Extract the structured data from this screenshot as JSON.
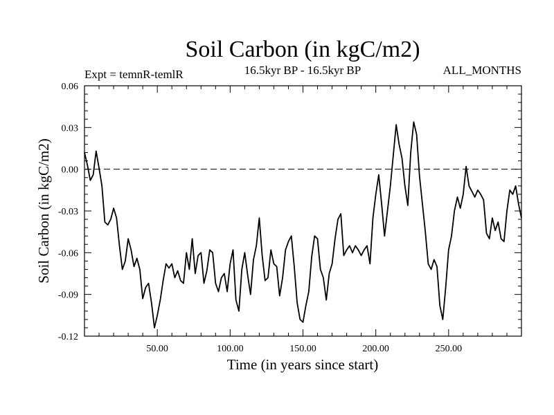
{
  "chart_data": {
    "type": "line",
    "title": "Soil Carbon (in kgC/m2)",
    "subtitle_left": "Expt = temnR-temlR",
    "subtitle_center": "16.5kyr BP - 16.5kyr BP",
    "subtitle_right": "ALL_MONTHS",
    "xlabel": "Time (in years since start)",
    "ylabel": "Soil Carbon (in kgC/m2)",
    "xlim": [
      0,
      300
    ],
    "ylim": [
      -0.12,
      0.06
    ],
    "x_ticks": [
      50,
      100,
      150,
      200,
      250
    ],
    "x_tick_labels": [
      "50.00",
      "100.00",
      "150.00",
      "200.00",
      "250.00"
    ],
    "y_ticks": [
      -0.12,
      -0.09,
      -0.06,
      -0.03,
      0.0,
      0.03,
      0.06
    ],
    "y_tick_labels": [
      "-0.12",
      "-0.09",
      "-0.06",
      "-0.03",
      "0.00",
      "0.03",
      "0.06"
    ],
    "reference_line": 0.0,
    "series": [
      {
        "name": "Soil Carbon",
        "x": [
          0,
          2,
          4,
          6,
          8,
          10,
          12,
          14,
          16,
          18,
          20,
          22,
          24,
          26,
          28,
          30,
          32,
          34,
          36,
          38,
          40,
          42,
          44,
          46,
          48,
          50,
          52,
          54,
          56,
          58,
          60,
          62,
          64,
          66,
          68,
          70,
          72,
          74,
          76,
          78,
          80,
          82,
          84,
          86,
          88,
          90,
          92,
          94,
          96,
          98,
          100,
          102,
          104,
          106,
          108,
          110,
          112,
          114,
          116,
          118,
          120,
          122,
          124,
          126,
          128,
          130,
          132,
          134,
          136,
          138,
          140,
          142,
          144,
          146,
          148,
          150,
          152,
          154,
          156,
          158,
          160,
          162,
          164,
          166,
          168,
          170,
          172,
          174,
          176,
          178,
          180,
          182,
          184,
          186,
          188,
          190,
          192,
          194,
          196,
          198,
          200,
          202,
          204,
          206,
          208,
          210,
          212,
          214,
          216,
          218,
          220,
          222,
          224,
          226,
          228,
          230,
          232,
          234,
          236,
          238,
          240,
          242,
          244,
          246,
          248,
          250,
          252,
          254,
          256,
          258,
          260,
          262,
          264,
          266,
          268,
          270,
          272,
          274,
          276,
          278,
          280,
          282,
          284,
          286,
          288,
          290,
          292,
          294,
          296,
          298,
          300
        ],
        "y": [
          0.012,
          0.003,
          -0.008,
          -0.004,
          0.013,
          0.001,
          -0.012,
          -0.038,
          -0.04,
          -0.036,
          -0.028,
          -0.035,
          -0.055,
          -0.072,
          -0.066,
          -0.05,
          -0.058,
          -0.07,
          -0.064,
          -0.072,
          -0.093,
          -0.085,
          -0.082,
          -0.096,
          -0.114,
          -0.105,
          -0.094,
          -0.08,
          -0.068,
          -0.071,
          -0.068,
          -0.078,
          -0.073,
          -0.08,
          -0.082,
          -0.06,
          -0.072,
          -0.05,
          -0.075,
          -0.062,
          -0.06,
          -0.082,
          -0.073,
          -0.058,
          -0.06,
          -0.082,
          -0.088,
          -0.078,
          -0.075,
          -0.088,
          -0.068,
          -0.058,
          -0.094,
          -0.102,
          -0.072,
          -0.06,
          -0.076,
          -0.09,
          -0.065,
          -0.055,
          -0.035,
          -0.062,
          -0.08,
          -0.078,
          -0.058,
          -0.068,
          -0.07,
          -0.091,
          -0.078,
          -0.058,
          -0.052,
          -0.048,
          -0.07,
          -0.096,
          -0.108,
          -0.11,
          -0.098,
          -0.088,
          -0.063,
          -0.048,
          -0.05,
          -0.072,
          -0.078,
          -0.094,
          -0.075,
          -0.068,
          -0.05,
          -0.036,
          -0.032,
          -0.062,
          -0.058,
          -0.055,
          -0.06,
          -0.055,
          -0.058,
          -0.062,
          -0.058,
          -0.055,
          -0.068,
          -0.035,
          -0.018,
          -0.004,
          -0.025,
          -0.048,
          -0.03,
          -0.012,
          0.01,
          0.032,
          0.018,
          0.008,
          -0.012,
          -0.026,
          0.012,
          0.034,
          0.025,
          -0.005,
          -0.025,
          -0.045,
          -0.068,
          -0.072,
          -0.065,
          -0.07,
          -0.098,
          -0.108,
          -0.085,
          -0.058,
          -0.048,
          -0.03,
          -0.02,
          -0.028,
          -0.018,
          0.002,
          -0.012,
          -0.016,
          -0.02,
          -0.015,
          -0.018,
          -0.022,
          -0.046,
          -0.05,
          -0.035,
          -0.044,
          -0.038,
          -0.05,
          -0.052,
          -0.03,
          -0.015,
          -0.018,
          -0.012,
          -0.025,
          -0.035
        ]
      }
    ]
  }
}
